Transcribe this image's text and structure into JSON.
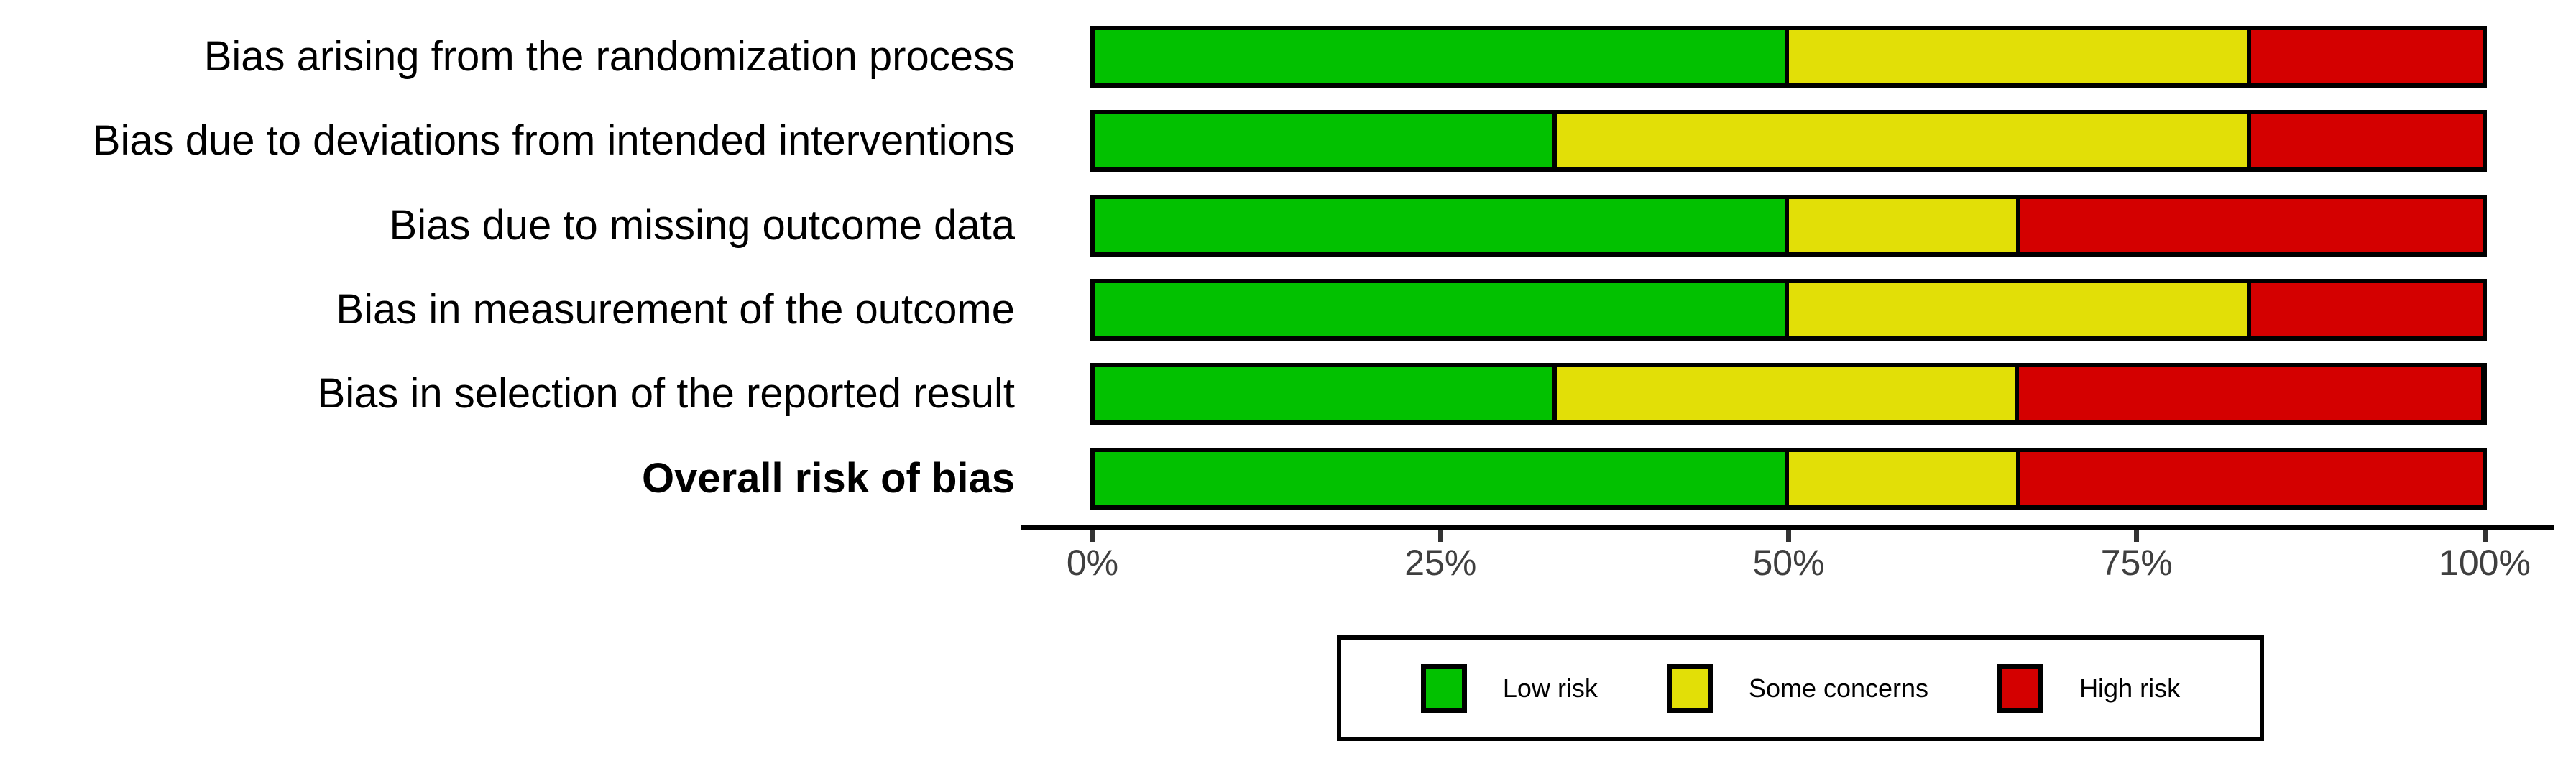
{
  "chart_data": {
    "type": "bar",
    "subtype": "horizontal_stacked_percent",
    "title": "",
    "xlabel": "",
    "ylabel": "",
    "xlim": [
      0,
      100
    ],
    "grid": false,
    "legend_position": "bottom",
    "x_ticks": [
      "0%",
      "25%",
      "50%",
      "75%",
      "100%"
    ],
    "categories": [
      {
        "label": "Bias arising from the randomization process",
        "bold": false
      },
      {
        "label": "Bias due to deviations from intended interventions",
        "bold": false
      },
      {
        "label": "Bias due to missing outcome data",
        "bold": false
      },
      {
        "label": "Bias in measurement of the outcome",
        "bold": false
      },
      {
        "label": "Bias in selection of the reported result",
        "bold": false
      },
      {
        "label": "Overall risk of bias",
        "bold": true
      }
    ],
    "series": [
      {
        "name": "Low risk",
        "color": "#02C100",
        "values": [
          50,
          33.3,
          50,
          50,
          33.3,
          50
        ]
      },
      {
        "name": "Some concerns",
        "color": "#E2DF07",
        "values": [
          33.3,
          50,
          16.7,
          33.3,
          33.3,
          16.7
        ]
      },
      {
        "name": "High risk",
        "color": "#D40000",
        "values": [
          16.7,
          16.7,
          33.3,
          16.7,
          33.3,
          33.3
        ]
      }
    ],
    "colors": {
      "low_risk": "#02C100",
      "some_concerns": "#E2DF07",
      "high_risk": "#D40000",
      "bar_border": "#000000",
      "axis_line": "#000000",
      "axis_tick": "#333333",
      "axis_text": "#3f3f3f",
      "category_text": "#000000",
      "background": "#ffffff"
    }
  }
}
